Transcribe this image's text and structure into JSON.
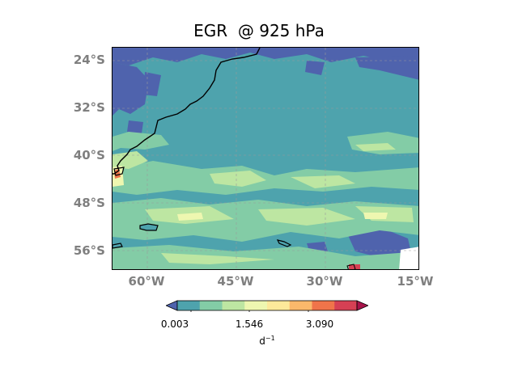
{
  "title": "EGR  @ 925 hPa",
  "lat_labels": [
    "24°S",
    "32°S",
    "40°S",
    "48°S",
    "56°S"
  ],
  "lon_labels": [
    "60°W",
    "45°W",
    "30°W",
    "15°W"
  ],
  "colorbar": {
    "ticks": [
      "0.003",
      "1.546",
      "3.090"
    ],
    "unit_base": "d",
    "unit_exp": "−1",
    "colors": [
      "#4f63ad",
      "#4ea3ad",
      "#83cca6",
      "#bde6a2",
      "#eef7b0",
      "#fde99a",
      "#fbb86b",
      "#f0744a",
      "#d64054",
      "#a8134a"
    ]
  }
}
